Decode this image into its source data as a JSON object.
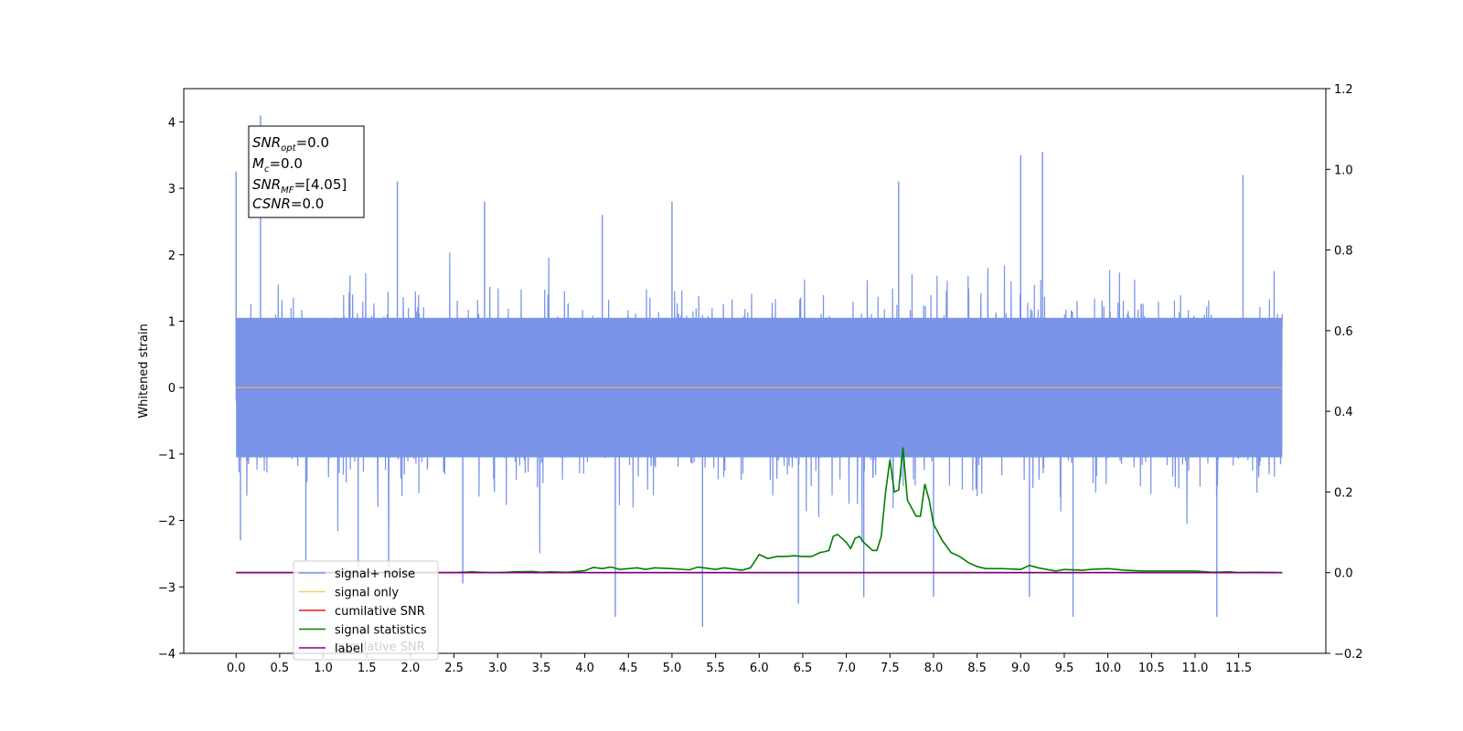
{
  "chart_data": {
    "type": "line",
    "xlabel": "",
    "ylabel": "Whitened strain",
    "xlim": [
      -0.6,
      12.5
    ],
    "ylim": [
      -4,
      4.5
    ],
    "y2lim": [
      -0.2,
      1.2
    ],
    "x_ticks": [
      "0.0",
      "0.5",
      "1.0",
      "1.5",
      "2.0",
      "2.5",
      "3.0",
      "3.5",
      "4.0",
      "4.5",
      "5.0",
      "5.5",
      "6.0",
      "6.5",
      "7.0",
      "7.5",
      "8.0",
      "8.5",
      "9.0",
      "9.5",
      "10.0",
      "10.5",
      "11.0",
      "11.5"
    ],
    "y_ticks": [
      "4",
      "3",
      "2",
      "1",
      "0",
      "−1",
      "−2",
      "−3",
      "−4"
    ],
    "y2_ticks": [
      "1.2",
      "1.0",
      "0.8",
      "0.6",
      "0.4",
      "0.2",
      "0.0",
      "−0.2"
    ],
    "grid": false,
    "legend_position": "lower-left",
    "annotation": {
      "snr_opt": {
        "name": "SNR",
        "sub": "opt",
        "value": "=0.0"
      },
      "mc": {
        "name": "M",
        "sub": "c",
        "value": "=0.0"
      },
      "snr_mf": {
        "name": "SNR",
        "sub": "MF",
        "value": "=[4.05]"
      },
      "csnr": {
        "name": "CSNR",
        "sub": "",
        "value": "=0.0"
      }
    },
    "series": [
      {
        "name": "signal+ noise",
        "color": "#7893e8",
        "axis": "left",
        "description_range": {
          "x": [
            0.0,
            12.0
          ],
          "typical_min": -1.9,
          "typical_max": 2.0
        },
        "spikes": [
          {
            "x": 0.0,
            "y": 3.25
          },
          {
            "x": 0.28,
            "y": 4.1
          },
          {
            "x": 0.05,
            "y": -2.3
          },
          {
            "x": 0.8,
            "y": -2.6
          },
          {
            "x": 1.4,
            "y": -2.7
          },
          {
            "x": 1.85,
            "y": 3.1
          },
          {
            "x": 1.75,
            "y": -2.7
          },
          {
            "x": 2.6,
            "y": -2.95
          },
          {
            "x": 2.85,
            "y": 2.8
          },
          {
            "x": 4.35,
            "y": -3.45
          },
          {
            "x": 4.2,
            "y": 2.6
          },
          {
            "x": 5.0,
            "y": 2.8
          },
          {
            "x": 5.35,
            "y": -3.6
          },
          {
            "x": 6.45,
            "y": -3.25
          },
          {
            "x": 7.6,
            "y": 3.1
          },
          {
            "x": 8.0,
            "y": -3.15
          },
          {
            "x": 9.0,
            "y": 3.5
          },
          {
            "x": 9.25,
            "y": 3.55
          },
          {
            "x": 9.1,
            "y": -3.15
          },
          {
            "x": 9.6,
            "y": -3.45
          },
          {
            "x": 11.25,
            "y": -3.45
          },
          {
            "x": 11.55,
            "y": 3.2
          },
          {
            "x": 7.2,
            "y": -3.15
          }
        ]
      },
      {
        "name": "signal only",
        "color": "#f4b06a",
        "axis": "left",
        "x": [
          0.0,
          12.0
        ],
        "values": [
          0.0,
          0.0
        ]
      },
      {
        "name": "cumilative SNR",
        "color": "#e41a1c",
        "axis": "right",
        "x": [
          0.0,
          12.0
        ],
        "values": [
          0.0,
          0.0
        ]
      },
      {
        "name": "signal statistics",
        "color": "#007f00",
        "axis": "right",
        "x": [
          0.0,
          2.5,
          2.7,
          2.9,
          3.0,
          3.2,
          3.4,
          3.5,
          3.6,
          3.8,
          4.0,
          4.1,
          4.2,
          4.3,
          4.4,
          4.6,
          4.7,
          4.8,
          5.0,
          5.2,
          5.3,
          5.5,
          5.6,
          5.8,
          5.9,
          6.0,
          6.1,
          6.2,
          6.3,
          6.4,
          6.5,
          6.6,
          6.7,
          6.75,
          6.8,
          6.85,
          6.9,
          6.95,
          7.0,
          7.05,
          7.1,
          7.15,
          7.2,
          7.25,
          7.3,
          7.35,
          7.4,
          7.45,
          7.5,
          7.55,
          7.6,
          7.65,
          7.7,
          7.75,
          7.8,
          7.85,
          7.9,
          7.95,
          8.0,
          8.1,
          8.2,
          8.3,
          8.4,
          8.5,
          8.6,
          8.8,
          9.0,
          9.1,
          9.2,
          9.4,
          9.5,
          9.7,
          9.8,
          10.0,
          10.2,
          10.4,
          11.0,
          11.2,
          11.4,
          11.5,
          11.7,
          11.95
        ],
        "values": [
          0.0,
          0.0,
          0.002,
          0.0,
          0.0,
          0.002,
          0.003,
          0.001,
          0.002,
          0.001,
          0.005,
          0.013,
          0.01,
          0.014,
          0.008,
          0.012,
          0.008,
          0.012,
          0.01,
          0.007,
          0.014,
          0.008,
          0.012,
          0.006,
          0.012,
          0.045,
          0.035,
          0.04,
          0.04,
          0.042,
          0.04,
          0.04,
          0.05,
          0.052,
          0.055,
          0.09,
          0.095,
          0.085,
          0.075,
          0.06,
          0.085,
          0.09,
          0.075,
          0.065,
          0.055,
          0.055,
          0.09,
          0.2,
          0.28,
          0.2,
          0.205,
          0.31,
          0.18,
          0.16,
          0.14,
          0.14,
          0.22,
          0.18,
          0.12,
          0.08,
          0.05,
          0.04,
          0.025,
          0.015,
          0.01,
          0.01,
          0.008,
          0.018,
          0.012,
          0.004,
          0.008,
          0.006,
          0.008,
          0.01,
          0.006,
          0.004,
          0.004,
          0.001,
          0.002,
          0.0,
          0.001,
          0.0
        ]
      },
      {
        "name": "label",
        "color": "#7f007f",
        "axis": "right",
        "x": [
          0.0,
          12.0
        ],
        "values": [
          0.0,
          0.0
        ]
      }
    ],
    "legend_ghost_text": "cumilative SNR"
  }
}
